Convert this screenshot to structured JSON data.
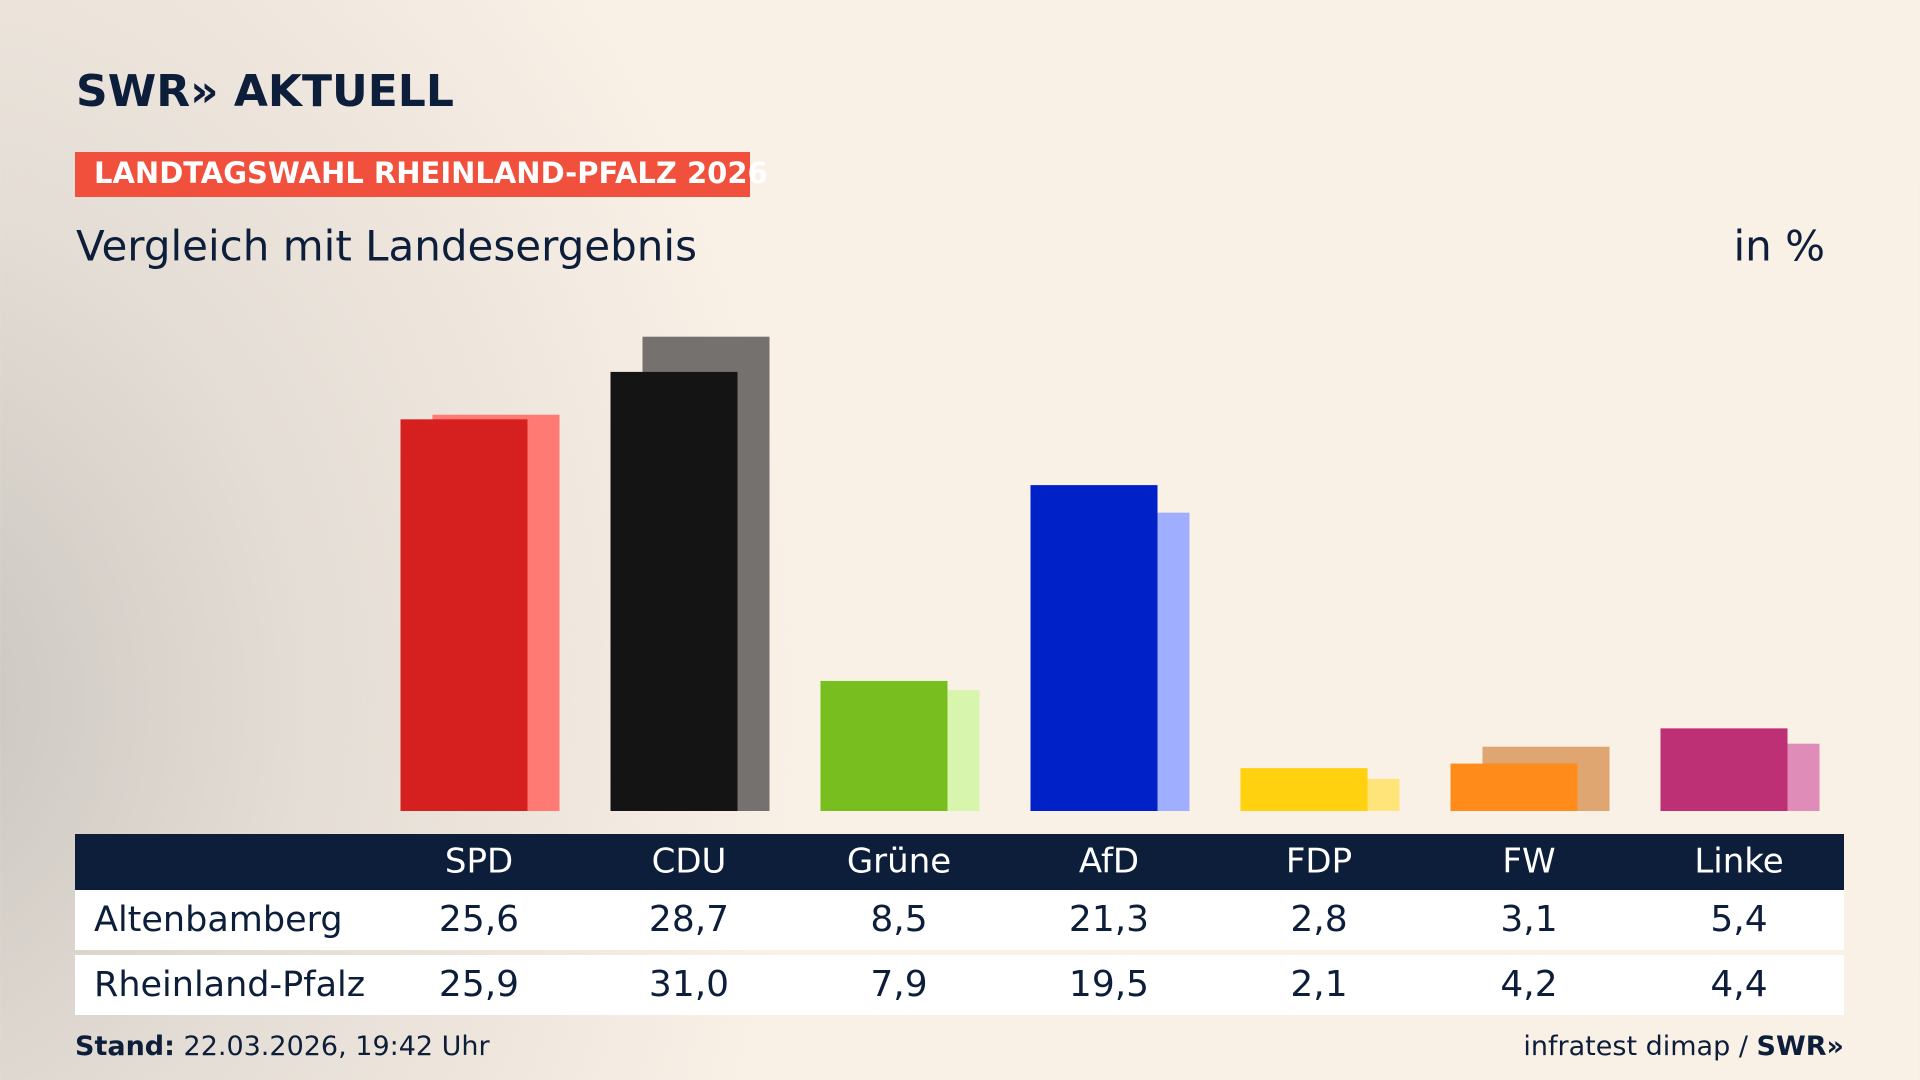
{
  "header": {
    "brand": "SWR» AKTUELL",
    "kicker": "LANDTAGSWAHL RHEINLAND-PFALZ 2026"
  },
  "chart_data": {
    "type": "bar",
    "title": "Vergleich mit Landesergebnis",
    "unit": "in %",
    "categories": [
      "SPD",
      "CDU",
      "Grüne",
      "AfD",
      "FDP",
      "FW",
      "Linke"
    ],
    "series": [
      {
        "name": "Altenbamberg",
        "colors": [
          "#d61f1f",
          "#141414",
          "#78be1e",
          "#0021c8",
          "#ffd10f",
          "#ff8c1a",
          "#be3075"
        ],
        "values": [
          25.6,
          28.7,
          8.5,
          21.3,
          2.8,
          3.1,
          5.4
        ],
        "value_labels": [
          "25,6",
          "28,7",
          "8,5",
          "21,3",
          "2,8",
          "3,1",
          "5,4"
        ]
      },
      {
        "name": "Rheinland-Pfalz",
        "colors": [
          "#ff7a73",
          "#74716e",
          "#d8f5ae",
          "#a0aeff",
          "#ffe47a",
          "#dfa672",
          "#e08cb8"
        ],
        "values": [
          25.9,
          31.0,
          7.9,
          19.5,
          2.1,
          4.2,
          4.4
        ],
        "value_labels": [
          "25,9",
          "31,0",
          "7,9",
          "19,5",
          "2,1",
          "4,2",
          "4,4"
        ]
      }
    ]
  },
  "footer": {
    "stand_label": "Stand:",
    "stand_value": "22.03.2026, 19:42 Uhr",
    "source": "infratest dimap /",
    "source_brand": "SWR»"
  }
}
